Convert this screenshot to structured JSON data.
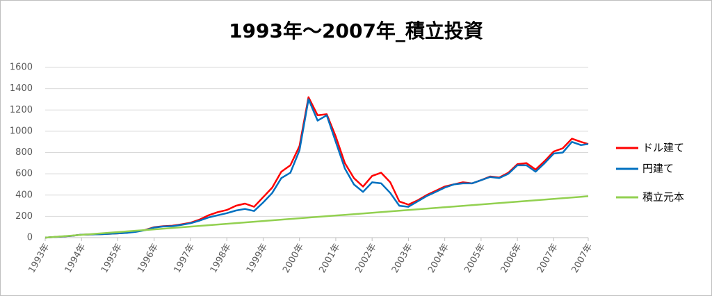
{
  "chart_data": {
    "type": "line",
    "title": "1993年～2007年_積立投資",
    "x": [
      1993,
      1993.25,
      1993.5,
      1993.75,
      1994,
      1994.25,
      1994.5,
      1994.75,
      1995,
      1995.25,
      1995.5,
      1995.75,
      1996,
      1996.25,
      1996.5,
      1996.75,
      1997,
      1997.25,
      1997.5,
      1997.75,
      1998,
      1998.25,
      1998.5,
      1998.75,
      1999,
      1999.25,
      1999.5,
      1999.75,
      2000,
      2000.25,
      2000.5,
      2000.75,
      2001,
      2001.25,
      2001.5,
      2001.75,
      2002,
      2002.25,
      2002.5,
      2002.75,
      2003,
      2003.25,
      2003.5,
      2003.75,
      2004,
      2004.25,
      2004.5,
      2004.75,
      2005,
      2005.25,
      2005.5,
      2005.75,
      2006,
      2006.25,
      2006.5,
      2006.75,
      2007,
      2007.25,
      2007.5,
      2007.75,
      2007.95
    ],
    "series": [
      {
        "name": "ドル建て",
        "color": "#ff0000",
        "values": [
          0,
          6,
          12,
          18,
          28,
          30,
          32,
          36,
          40,
          46,
          57,
          72,
          98,
          108,
          112,
          125,
          140,
          170,
          210,
          240,
          260,
          300,
          320,
          290,
          380,
          470,
          620,
          680,
          860,
          1320,
          1150,
          1160,
          950,
          700,
          560,
          480,
          580,
          610,
          520,
          340,
          310,
          350,
          400,
          440,
          480,
          500,
          520,
          510,
          540,
          575,
          565,
          610,
          690,
          700,
          640,
          720,
          810,
          840,
          930,
          900,
          880
        ]
      },
      {
        "name": "円建て",
        "color": "#0070c0",
        "values": [
          0,
          6,
          12,
          18,
          28,
          30,
          32,
          36,
          40,
          45,
          55,
          70,
          95,
          105,
          108,
          120,
          135,
          160,
          190,
          210,
          230,
          255,
          270,
          250,
          330,
          420,
          560,
          610,
          820,
          1300,
          1100,
          1150,
          900,
          650,
          500,
          430,
          520,
          510,
          420,
          300,
          290,
          340,
          390,
          430,
          470,
          500,
          510,
          510,
          540,
          570,
          560,
          600,
          680,
          680,
          620,
          700,
          790,
          800,
          900,
          870,
          880
        ]
      },
      {
        "name": "積立元本",
        "color": "#92d050",
        "values": [
          0,
          6.5,
          13,
          19.5,
          26,
          32.5,
          39,
          45.5,
          52,
          58.5,
          65,
          71.5,
          78,
          84.5,
          91,
          97.5,
          104,
          110.5,
          117,
          123.5,
          130,
          136.5,
          143,
          149.5,
          156,
          162.5,
          169,
          175.5,
          182,
          188.5,
          195,
          201.5,
          208,
          214.5,
          221,
          227.5,
          234,
          240.5,
          247,
          253.5,
          260,
          266.5,
          273,
          279.5,
          286,
          292.5,
          299,
          305.5,
          312,
          318.5,
          325,
          331.5,
          338,
          344.5,
          351,
          357.5,
          364,
          370.5,
          377,
          383.5,
          389
        ]
      }
    ],
    "xlim": [
      1993,
      2007.95
    ],
    "xticks": [
      {
        "value": 1993,
        "label": "1993年"
      },
      {
        "value": 1994,
        "label": "1994年"
      },
      {
        "value": 1995,
        "label": "1995年"
      },
      {
        "value": 1996,
        "label": "1996年"
      },
      {
        "value": 1997,
        "label": "1997年"
      },
      {
        "value": 1998,
        "label": "1998年"
      },
      {
        "value": 1999,
        "label": "1999年"
      },
      {
        "value": 2000,
        "label": "2000年"
      },
      {
        "value": 2001,
        "label": "2001年"
      },
      {
        "value": 2002,
        "label": "2002年"
      },
      {
        "value": 2003,
        "label": "2003年"
      },
      {
        "value": 2004,
        "label": "2004年"
      },
      {
        "value": 2005,
        "label": "2005年"
      },
      {
        "value": 2006,
        "label": "2006年"
      },
      {
        "value": 2007,
        "label": "2007年"
      },
      {
        "value": 2007.95,
        "label": "2007年"
      }
    ],
    "ylim": [
      0,
      1600
    ],
    "yticks": [
      0,
      200,
      400,
      600,
      800,
      1000,
      1200,
      1400,
      1600
    ],
    "grid": true,
    "legend": "right"
  }
}
